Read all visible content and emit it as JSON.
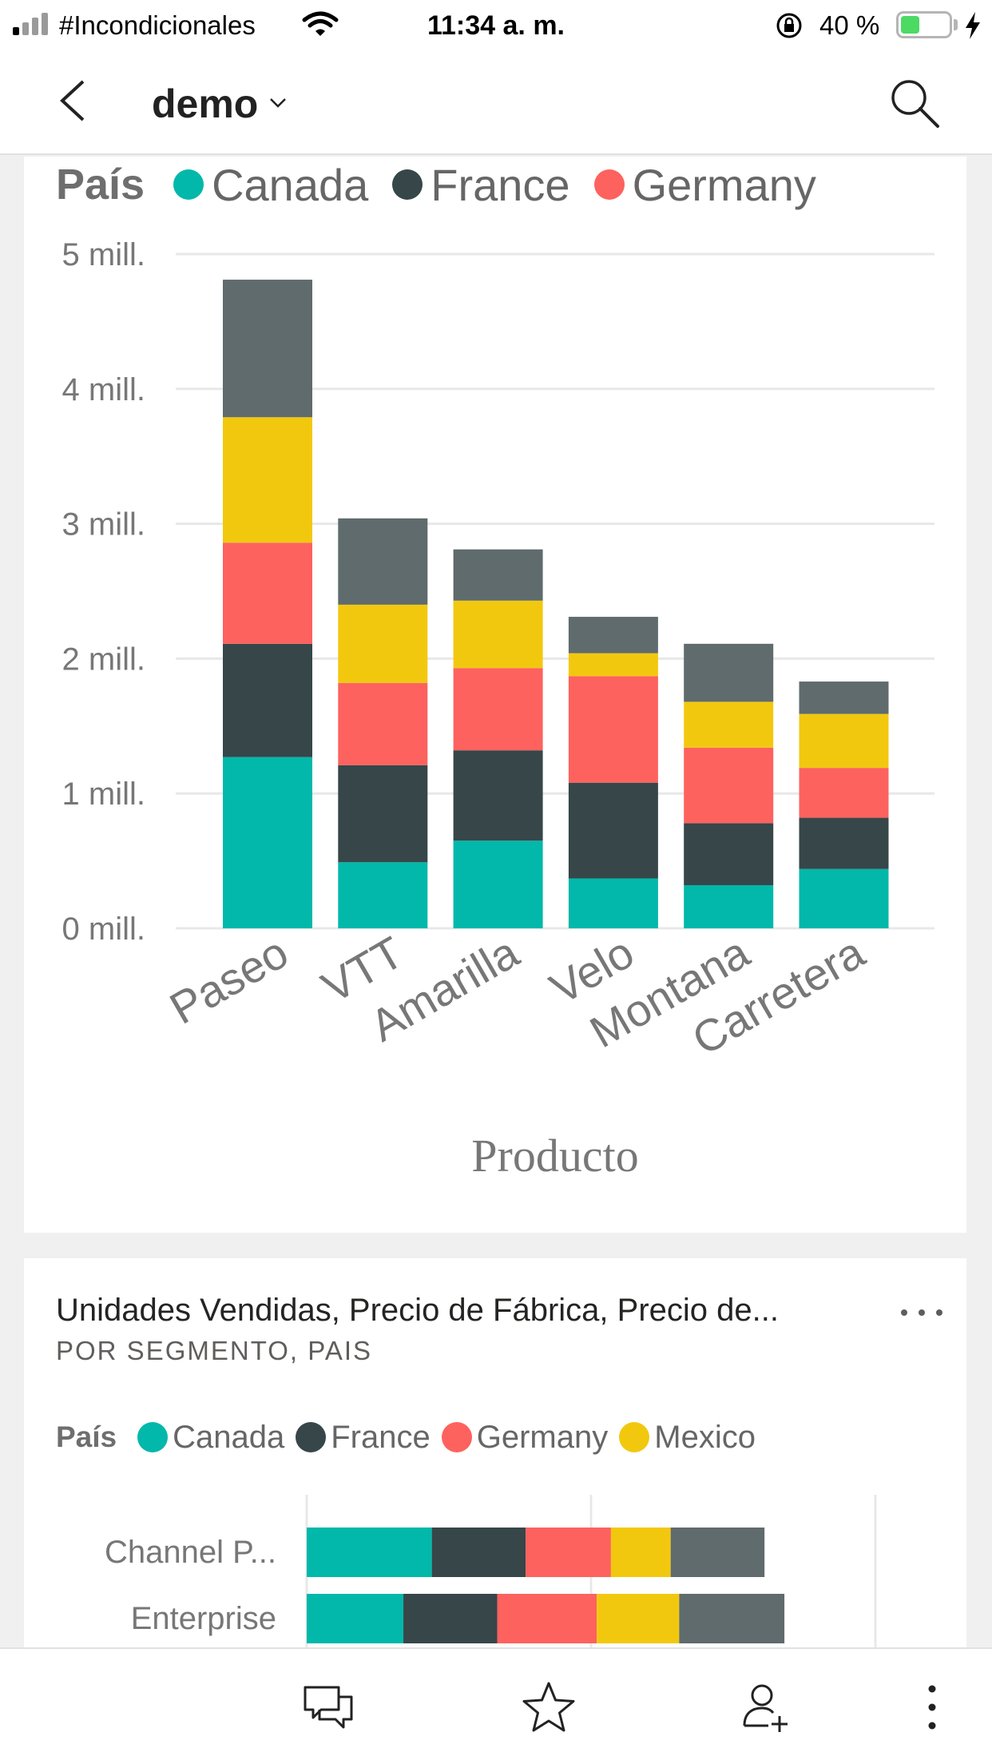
{
  "status_bar": {
    "carrier": "#Incondicionales",
    "time": "11:34 a. m.",
    "battery_text": "40 %",
    "battery_level": 0.4
  },
  "header": {
    "title": "demo",
    "back_icon": "chevron-left-icon",
    "dropdown_icon": "chevron-down-icon",
    "search_icon": "search-icon"
  },
  "colors": {
    "canada": "#01b8aa",
    "france": "#374649",
    "germany": "#fd625e",
    "mexico": "#f2c80f",
    "usa": "#5f6b6d"
  },
  "card1": {
    "legend_title": "País",
    "legend": [
      {
        "name": "Canada",
        "color": "#01b8aa"
      },
      {
        "name": "France",
        "color": "#374649"
      },
      {
        "name": "Germany",
        "color": "#fd625e"
      }
    ]
  },
  "card2": {
    "title": "Unidades Vendidas, Precio de Fábrica, Precio de...",
    "subtitle": "POR SEGMENTO, PAIS",
    "more_icon": "more-horizontal-icon",
    "legend_title": "País",
    "legend": [
      {
        "name": "Canada",
        "color": "#01b8aa"
      },
      {
        "name": "France",
        "color": "#374649"
      },
      {
        "name": "Germany",
        "color": "#fd625e"
      },
      {
        "name": "Mexico",
        "color": "#f2c80f"
      }
    ]
  },
  "chart_data": [
    {
      "type": "bar",
      "stacked": true,
      "orientation": "vertical",
      "categories": [
        "Paseo",
        "VTT",
        "Amarilla",
        "Velo",
        "Montana",
        "Carretera"
      ],
      "series": [
        {
          "name": "Canada",
          "color": "#01b8aa",
          "values": [
            1.27,
            0.49,
            0.65,
            0.37,
            0.32,
            0.44
          ]
        },
        {
          "name": "France",
          "color": "#374649",
          "values": [
            0.84,
            0.72,
            0.67,
            0.71,
            0.46,
            0.38
          ]
        },
        {
          "name": "Germany",
          "color": "#fd625e",
          "values": [
            0.75,
            0.61,
            0.61,
            0.79,
            0.56,
            0.37
          ]
        },
        {
          "color": "#f2c80f",
          "values": [
            0.93,
            0.58,
            0.5,
            0.17,
            0.34,
            0.4
          ]
        },
        {
          "color": "#5f6b6d",
          "values": [
            1.02,
            0.64,
            0.38,
            0.27,
            0.43,
            0.24
          ]
        }
      ],
      "yticks": [
        "0 mill.",
        "1 mill.",
        "2 mill.",
        "3 mill.",
        "4 mill.",
        "5 mill."
      ],
      "ylim": [
        0,
        5
      ],
      "xlabel": "Producto",
      "ylabel": "",
      "legend": "top-left",
      "grid": true
    },
    {
      "type": "bar",
      "stacked": true,
      "orientation": "horizontal",
      "categories": [
        "Channel P...",
        "Enterprise"
      ],
      "series": [
        {
          "name": "Canada",
          "color": "#01b8aa",
          "values": [
            0.44,
            0.34
          ]
        },
        {
          "name": "France",
          "color": "#374649",
          "values": [
            0.33,
            0.33
          ]
        },
        {
          "name": "Germany",
          "color": "#fd625e",
          "values": [
            0.3,
            0.35
          ]
        },
        {
          "name": "Mexico",
          "color": "#f2c80f",
          "values": [
            0.21,
            0.29
          ]
        },
        {
          "color": "#5f6b6d",
          "values": [
            0.33,
            0.37
          ]
        }
      ],
      "grid": true,
      "legend": "top-left"
    }
  ],
  "bottom_bar": {
    "icons": [
      "comments-icon",
      "favorite-star-icon",
      "invite-user-icon",
      "more-vertical-icon"
    ]
  }
}
